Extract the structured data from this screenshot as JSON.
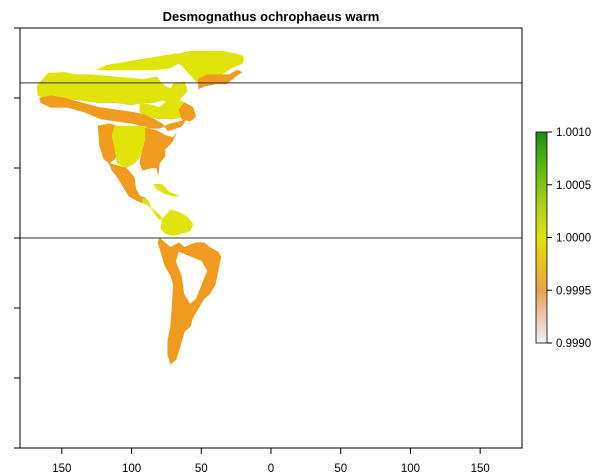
{
  "title": "Desmognathus ochrophaeus warm",
  "map": {
    "x_tick_labels": [
      "150",
      "100",
      "50",
      "0",
      "50",
      "100",
      "150"
    ],
    "x_range": [
      -180,
      180
    ],
    "y_range": [
      -90,
      90
    ],
    "reference_lines": [
      {
        "name": "arctic-circle-line",
        "latitude": 66.5
      },
      {
        "name": "equator-line",
        "latitude": 0
      }
    ],
    "regions": [
      {
        "name": "region-alaska-yukon",
        "value": 1.0,
        "color": "#dfe30a",
        "points": [
          [
            -168,
            65
          ],
          [
            -160,
            70.5
          ],
          [
            -148,
            71
          ],
          [
            -140,
            70
          ],
          [
            -130,
            70
          ],
          [
            -120,
            69.5
          ],
          [
            -110,
            69
          ],
          [
            -100,
            68.5
          ],
          [
            -92,
            68
          ],
          [
            -82,
            69
          ],
          [
            -78,
            66
          ],
          [
            -72,
            64
          ],
          [
            -70,
            66
          ],
          [
            -62,
            67
          ],
          [
            -60,
            63
          ],
          [
            -66,
            59
          ],
          [
            -72,
            58
          ],
          [
            -78,
            59
          ],
          [
            -84,
            58
          ],
          [
            -92,
            58
          ],
          [
            -100,
            57
          ],
          [
            -112,
            58
          ],
          [
            -124,
            58
          ],
          [
            -136,
            59
          ],
          [
            -150,
            60
          ],
          [
            -162,
            60
          ],
          [
            -167,
            61
          ]
        ]
      },
      {
        "name": "region-arctic-islands",
        "value": 1.0,
        "color": "#dfe30a",
        "points": [
          [
            -125,
            72
          ],
          [
            -118,
            74
          ],
          [
            -108,
            75
          ],
          [
            -98,
            76
          ],
          [
            -88,
            77
          ],
          [
            -78,
            78
          ],
          [
            -68,
            79
          ],
          [
            -62,
            78
          ],
          [
            -66,
            75
          ],
          [
            -72,
            73
          ],
          [
            -84,
            72
          ],
          [
            -96,
            72
          ],
          [
            -108,
            72
          ],
          [
            -118,
            72
          ]
        ]
      },
      {
        "name": "region-greenland",
        "value": 1.0,
        "color": "#dfe30a",
        "points": [
          [
            -74,
            77
          ],
          [
            -66,
            79
          ],
          [
            -58,
            80
          ],
          [
            -46,
            80
          ],
          [
            -34,
            80
          ],
          [
            -26,
            79
          ],
          [
            -20,
            78
          ],
          [
            -20,
            75
          ],
          [
            -28,
            73
          ],
          [
            -36,
            70
          ],
          [
            -44,
            66
          ],
          [
            -52,
            66
          ],
          [
            -58,
            70
          ],
          [
            -64,
            74
          ]
        ]
      },
      {
        "name": "region-hudson-labrador",
        "value": 1.0,
        "color": "#dfe30a",
        "points": [
          [
            -94,
            58
          ],
          [
            -86,
            57
          ],
          [
            -80,
            56
          ],
          [
            -76,
            58
          ],
          [
            -70,
            60
          ],
          [
            -62,
            58
          ],
          [
            -58,
            55
          ],
          [
            -62,
            52
          ],
          [
            -70,
            51
          ],
          [
            -80,
            51
          ],
          [
            -88,
            52
          ],
          [
            -94,
            54
          ]
        ]
      },
      {
        "name": "region-boreal-band",
        "value": 0.9995,
        "color": "#f09a1e",
        "points": [
          [
            -166,
            60
          ],
          [
            -158,
            61
          ],
          [
            -148,
            60
          ],
          [
            -136,
            58
          ],
          [
            -124,
            56
          ],
          [
            -112,
            55
          ],
          [
            -100,
            54
          ],
          [
            -92,
            53
          ],
          [
            -84,
            51
          ],
          [
            -78,
            49
          ],
          [
            -74,
            46
          ],
          [
            -68,
            47
          ],
          [
            -64,
            48
          ],
          [
            -60,
            52
          ],
          [
            -64,
            50
          ],
          [
            -72,
            49
          ],
          [
            -80,
            47
          ],
          [
            -88,
            47
          ],
          [
            -98,
            49
          ],
          [
            -110,
            50
          ],
          [
            -122,
            51
          ],
          [
            -134,
            54
          ],
          [
            -146,
            56
          ],
          [
            -158,
            56
          ],
          [
            -165,
            58
          ]
        ]
      },
      {
        "name": "region-greenland-south",
        "value": 0.9995,
        "color": "#f09a1e",
        "points": [
          [
            -52,
            64
          ],
          [
            -48,
            65
          ],
          [
            -40,
            66
          ],
          [
            -32,
            66
          ],
          [
            -26,
            69
          ],
          [
            -21,
            71
          ],
          [
            -24,
            72
          ],
          [
            -30,
            70
          ],
          [
            -38,
            70
          ],
          [
            -46,
            70
          ],
          [
            -52,
            68
          ]
        ]
      },
      {
        "name": "region-labrador-coast",
        "value": 0.9995,
        "color": "#f09a1e",
        "points": [
          [
            -62,
            58
          ],
          [
            -56,
            56
          ],
          [
            -54,
            52
          ],
          [
            -58,
            50
          ],
          [
            -64,
            51
          ],
          [
            -66,
            55
          ]
        ]
      },
      {
        "name": "region-conus-west",
        "value": 0.9995,
        "color": "#f09a1e",
        "points": [
          [
            -124,
            48
          ],
          [
            -116,
            49
          ],
          [
            -110,
            48
          ],
          [
            -104,
            46
          ],
          [
            -108,
            40
          ],
          [
            -112,
            34
          ],
          [
            -116,
            32
          ],
          [
            -120,
            34
          ],
          [
            -123,
            40
          ]
        ]
      },
      {
        "name": "region-conus-central",
        "value": 1.0,
        "color": "#dfe30a",
        "points": [
          [
            -112,
            48
          ],
          [
            -100,
            48
          ],
          [
            -90,
            48
          ],
          [
            -84,
            45
          ],
          [
            -88,
            40
          ],
          [
            -92,
            36
          ],
          [
            -98,
            32
          ],
          [
            -104,
            30
          ],
          [
            -110,
            32
          ],
          [
            -112,
            38
          ],
          [
            -114,
            44
          ]
        ]
      },
      {
        "name": "region-conus-east",
        "value": 0.9995,
        "color": "#f09a1e",
        "points": [
          [
            -90,
            47
          ],
          [
            -82,
            46
          ],
          [
            -76,
            44
          ],
          [
            -70,
            43
          ],
          [
            -68,
            45
          ],
          [
            -71,
            41
          ],
          [
            -76,
            38
          ],
          [
            -76,
            35
          ],
          [
            -80,
            32
          ],
          [
            -81,
            27
          ],
          [
            -82,
            30
          ],
          [
            -86,
            30
          ],
          [
            -92,
            29
          ],
          [
            -94,
            32
          ],
          [
            -92,
            38
          ],
          [
            -90,
            42
          ]
        ]
      },
      {
        "name": "region-mexico",
        "value": 0.9995,
        "color": "#f09a1e",
        "points": [
          [
            -116,
            32
          ],
          [
            -110,
            31
          ],
          [
            -104,
            30
          ],
          [
            -98,
            26
          ],
          [
            -97,
            21
          ],
          [
            -94,
            18
          ],
          [
            -90,
            17
          ],
          [
            -88,
            15
          ],
          [
            -92,
            15
          ],
          [
            -96,
            16
          ],
          [
            -102,
            18
          ],
          [
            -106,
            22
          ],
          [
            -110,
            26
          ],
          [
            -114,
            29
          ]
        ]
      },
      {
        "name": "region-central-america",
        "value": 1.0,
        "color": "#dfe30a",
        "points": [
          [
            -92,
            17
          ],
          [
            -88,
            16
          ],
          [
            -86,
            13
          ],
          [
            -83,
            10
          ],
          [
            -80,
            8
          ],
          [
            -78,
            8
          ],
          [
            -80,
            10
          ],
          [
            -84,
            12
          ],
          [
            -88,
            14
          ],
          [
            -92,
            15
          ]
        ]
      },
      {
        "name": "region-caribbean",
        "value": 1.0,
        "color": "#dfe30a",
        "points": [
          [
            -84,
            23
          ],
          [
            -78,
            23
          ],
          [
            -74,
            20
          ],
          [
            -70,
            19
          ],
          [
            -66,
            18
          ],
          [
            -70,
            18
          ],
          [
            -76,
            19
          ],
          [
            -82,
            21
          ]
        ]
      },
      {
        "name": "region-south-america-north",
        "value": 1.0,
        "color": "#dfe30a",
        "points": [
          [
            -78,
            8
          ],
          [
            -72,
            12
          ],
          [
            -66,
            11
          ],
          [
            -60,
            9
          ],
          [
            -56,
            6
          ],
          [
            -58,
            3
          ],
          [
            -64,
            2
          ],
          [
            -70,
            1
          ],
          [
            -76,
            2
          ],
          [
            -79,
            4
          ]
        ]
      },
      {
        "name": "region-south-america",
        "value": 0.9995,
        "color": "#f09a1e",
        "points": [
          [
            -80,
            0
          ],
          [
            -76,
            -2
          ],
          [
            -72,
            -4
          ],
          [
            -66,
            -2
          ],
          [
            -62,
            -4
          ],
          [
            -54,
            -2
          ],
          [
            -48,
            -2
          ],
          [
            -44,
            -4
          ],
          [
            -38,
            -6
          ],
          [
            -36,
            -8
          ],
          [
            -38,
            -14
          ],
          [
            -40,
            -20
          ],
          [
            -44,
            -24
          ],
          [
            -48,
            -26
          ],
          [
            -52,
            -30
          ],
          [
            -56,
            -34
          ],
          [
            -58,
            -38
          ],
          [
            -62,
            -40
          ],
          [
            -64,
            -44
          ],
          [
            -66,
            -48
          ],
          [
            -68,
            -52
          ],
          [
            -72,
            -54
          ],
          [
            -74,
            -50
          ],
          [
            -74,
            -44
          ],
          [
            -72,
            -38
          ],
          [
            -71,
            -30
          ],
          [
            -70,
            -20
          ],
          [
            -72,
            -16
          ],
          [
            -76,
            -12
          ],
          [
            -79,
            -6
          ],
          [
            -81,
            -2
          ]
        ]
      },
      {
        "name": "region-central-south-america-gap",
        "value": 1.0,
        "color": "#ffffff",
        "points": [
          [
            -66,
            -6
          ],
          [
            -58,
            -8
          ],
          [
            -50,
            -10
          ],
          [
            -46,
            -14
          ],
          [
            -50,
            -20
          ],
          [
            -54,
            -26
          ],
          [
            -58,
            -28
          ],
          [
            -62,
            -24
          ],
          [
            -64,
            -16
          ],
          [
            -68,
            -10
          ]
        ]
      }
    ]
  },
  "legend": {
    "tick_labels": [
      "1.0010",
      "1.0005",
      "1.0000",
      "0.9995",
      "0.9990"
    ],
    "tick_values": [
      1.001,
      1.0005,
      1.0,
      0.9995,
      0.999
    ],
    "range": [
      0.999,
      1.001
    ],
    "gradient_colors": [
      {
        "value": 0.999,
        "color": "#f2f2f2"
      },
      {
        "value": 0.99925,
        "color": "#eec4b3"
      },
      {
        "value": 0.9995,
        "color": "#e8a24e"
      },
      {
        "value": 0.99975,
        "color": "#e6c21e"
      },
      {
        "value": 1.0,
        "color": "#e0e20a"
      },
      {
        "value": 1.00025,
        "color": "#b8d31a"
      },
      {
        "value": 1.0005,
        "color": "#84c314"
      },
      {
        "value": 1.00075,
        "color": "#4caf14"
      },
      {
        "value": 1.001,
        "color": "#1f8a14"
      }
    ]
  }
}
